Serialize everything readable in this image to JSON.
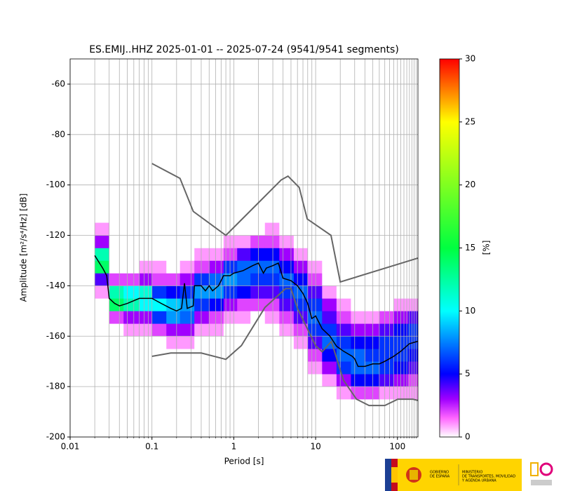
{
  "chart_data": {
    "type": "heatmap",
    "title": "ES.EMIJ..HHZ   2025-01-01 -- 2025-07-24  (9541/9541 segments)",
    "xlabel": "Period [s]",
    "ylabel": "Amplitude [m²/s⁴/Hz] [dB]",
    "colorbar_label": "[%]",
    "xscale": "log",
    "xlim": [
      0.01,
      178
    ],
    "ylim": [
      -200,
      -50
    ],
    "xticks": [
      0.01,
      0.1,
      1,
      10,
      100
    ],
    "xminorticks": [
      0.02,
      0.03,
      0.04,
      0.05,
      0.06,
      0.07,
      0.08,
      0.09,
      0.2,
      0.3,
      0.4,
      0.5,
      0.6,
      0.7,
      0.8,
      0.9,
      2,
      3,
      4,
      5,
      6,
      7,
      8,
      9,
      20,
      30,
      40,
      50,
      60,
      70,
      80,
      90,
      110,
      120,
      130,
      140,
      150,
      160,
      170
    ],
    "yticks": [
      -200,
      -180,
      -160,
      -140,
      -120,
      -100,
      -80,
      -60
    ],
    "grid": true,
    "clim": [
      0,
      30
    ],
    "cticks": [
      0,
      5,
      10,
      15,
      20,
      25,
      30
    ],
    "heatmap": {
      "x_bins": [
        0.02,
        0.03,
        0.045,
        0.07,
        0.1,
        0.15,
        0.22,
        0.33,
        0.5,
        0.75,
        1.1,
        1.6,
        2.4,
        3.6,
        5.4,
        8,
        12,
        18,
        27,
        40,
        60,
        90,
        135,
        178
      ],
      "y_bins": [
        -185,
        -180,
        -175,
        -170,
        -165,
        -160,
        -155,
        -150,
        -145,
        -140,
        -135,
        -130,
        -125,
        -120,
        -115
      ],
      "values": [
        [
          0,
          0,
          0,
          0,
          0,
          0,
          0,
          0,
          1,
          4,
          14,
          12,
          3,
          1
        ],
        [
          0,
          0,
          0,
          0,
          0,
          0,
          2,
          14,
          12,
          2,
          0,
          0,
          0,
          0
        ],
        [
          0,
          0,
          0,
          0,
          0,
          1,
          3,
          12,
          10,
          2,
          0,
          0,
          0,
          0
        ],
        [
          0,
          0,
          0,
          0,
          0,
          1,
          3,
          10,
          11,
          3,
          1,
          0,
          0,
          0
        ],
        [
          0,
          0,
          0,
          0,
          0,
          2,
          6,
          10,
          6,
          2,
          1,
          0,
          0,
          0
        ],
        [
          0,
          0,
          0,
          0,
          1,
          3,
          8,
          9,
          5,
          2,
          0,
          0,
          0,
          0
        ],
        [
          0,
          0,
          0,
          0,
          1,
          3,
          7,
          8,
          6,
          3,
          1,
          0,
          0,
          0
        ],
        [
          0,
          0,
          0,
          0,
          0,
          1,
          3,
          6,
          8,
          6,
          2,
          1,
          0,
          0
        ],
        [
          0,
          0,
          0,
          0,
          0,
          1,
          2,
          5,
          8,
          7,
          3,
          1,
          0,
          0
        ],
        [
          0,
          0,
          0,
          0,
          0,
          0,
          1,
          3,
          6,
          8,
          6,
          2,
          1,
          0
        ],
        [
          0,
          0,
          0,
          0,
          0,
          0,
          1,
          2,
          5,
          7,
          7,
          4,
          1,
          0
        ],
        [
          0,
          0,
          0,
          0,
          0,
          0,
          0,
          2,
          4,
          6,
          7,
          5,
          2,
          0
        ],
        [
          0,
          0,
          0,
          0,
          0,
          0,
          1,
          2,
          4,
          6,
          7,
          5,
          2,
          1
        ],
        [
          0,
          0,
          0,
          0,
          0,
          1,
          2,
          4,
          6,
          7,
          5,
          3,
          1,
          0
        ],
        [
          0,
          0,
          0,
          0,
          1,
          2,
          4,
          6,
          7,
          5,
          3,
          1,
          0,
          0
        ],
        [
          0,
          0,
          1,
          2,
          4,
          6,
          7,
          6,
          4,
          2,
          1,
          0,
          0,
          0
        ],
        [
          0,
          1,
          3,
          5,
          7,
          6,
          4,
          3,
          1,
          0,
          0,
          0,
          0,
          0
        ],
        [
          1,
          3,
          6,
          7,
          6,
          4,
          2,
          1,
          0,
          0,
          0,
          0,
          0,
          0
        ],
        [
          2,
          5,
          7,
          7,
          5,
          3,
          1,
          0,
          0,
          0,
          0,
          0,
          0,
          0
        ],
        [
          2,
          5,
          7,
          6,
          5,
          3,
          1,
          0,
          0,
          0,
          0,
          0,
          0,
          0
        ],
        [
          1,
          4,
          6,
          6,
          6,
          4,
          2,
          0,
          0,
          0,
          0,
          0,
          0,
          0
        ],
        [
          1,
          3,
          5,
          6,
          6,
          5,
          3,
          1,
          0,
          0,
          0,
          0,
          0,
          0
        ],
        [
          1,
          2,
          4,
          5,
          6,
          6,
          4,
          1,
          0,
          0,
          0,
          0,
          0,
          0
        ]
      ]
    },
    "series": [
      {
        "color": "#666666",
        "x": [
          0.1,
          0.22,
          0.32,
          0.8,
          3.8,
          4.6,
          6.3,
          7.9,
          15.4,
          20,
          178
        ],
        "values": [
          -91.5,
          -97.4,
          -110.5,
          -120,
          -98,
          -96.5,
          -101,
          -113.5,
          -120,
          -138.5,
          -129
        ]
      },
      {
        "color": "#666666",
        "x": [
          0.1,
          0.17,
          0.4,
          0.8,
          1.24,
          2.4,
          4.3,
          5,
          6,
          10,
          12,
          15.6,
          21.9,
          31.6,
          45,
          70,
          101,
          154,
          178
        ],
        "values": [
          -168,
          -166.7,
          -166.7,
          -169.2,
          -163.7,
          -148.6,
          -141.1,
          -141.1,
          -149,
          -163.8,
          -166.2,
          -162.1,
          -177.5,
          -185,
          -187.5,
          -187.5,
          -185,
          -185,
          -185.5
        ]
      },
      {
        "color": "#000000",
        "x": [
          0.02,
          0.025,
          0.028,
          0.03,
          0.035,
          0.04,
          0.05,
          0.07,
          0.1,
          0.13,
          0.17,
          0.2,
          0.23,
          0.25,
          0.27,
          0.32,
          0.33,
          0.4,
          0.45,
          0.5,
          0.55,
          0.65,
          0.75,
          0.9,
          1,
          1.3,
          1.7,
          2,
          2.3,
          2.5,
          3,
          3.5,
          4,
          5,
          6,
          7,
          8,
          9,
          10,
          12,
          15,
          18,
          22,
          28,
          30,
          33,
          40,
          50,
          60,
          70,
          90,
          110,
          140,
          178
        ],
        "values": [
          -128,
          -133,
          -136,
          -145,
          -147,
          -148,
          -147,
          -145,
          -145,
          -147,
          -149,
          -150,
          -149,
          -139,
          -149,
          -148,
          -140,
          -140,
          -142,
          -140,
          -142,
          -140,
          -136,
          -136,
          -135,
          -134,
          -132,
          -131,
          -135,
          -133,
          -132,
          -131,
          -137,
          -138,
          -140,
          -143,
          -147,
          -153,
          -152,
          -157,
          -160,
          -164,
          -166,
          -168,
          -169,
          -172,
          -172,
          -171,
          -171,
          -170,
          -168,
          -166,
          -163,
          -162
        ]
      }
    ]
  },
  "footer": {
    "government": [
      "GOBIERNO",
      "DE ESPAÑA"
    ],
    "ministry": [
      "MINISTERIO",
      "DE TRANSPORTES, MOVILIDAD",
      "Y AGENDA URBANA"
    ]
  }
}
